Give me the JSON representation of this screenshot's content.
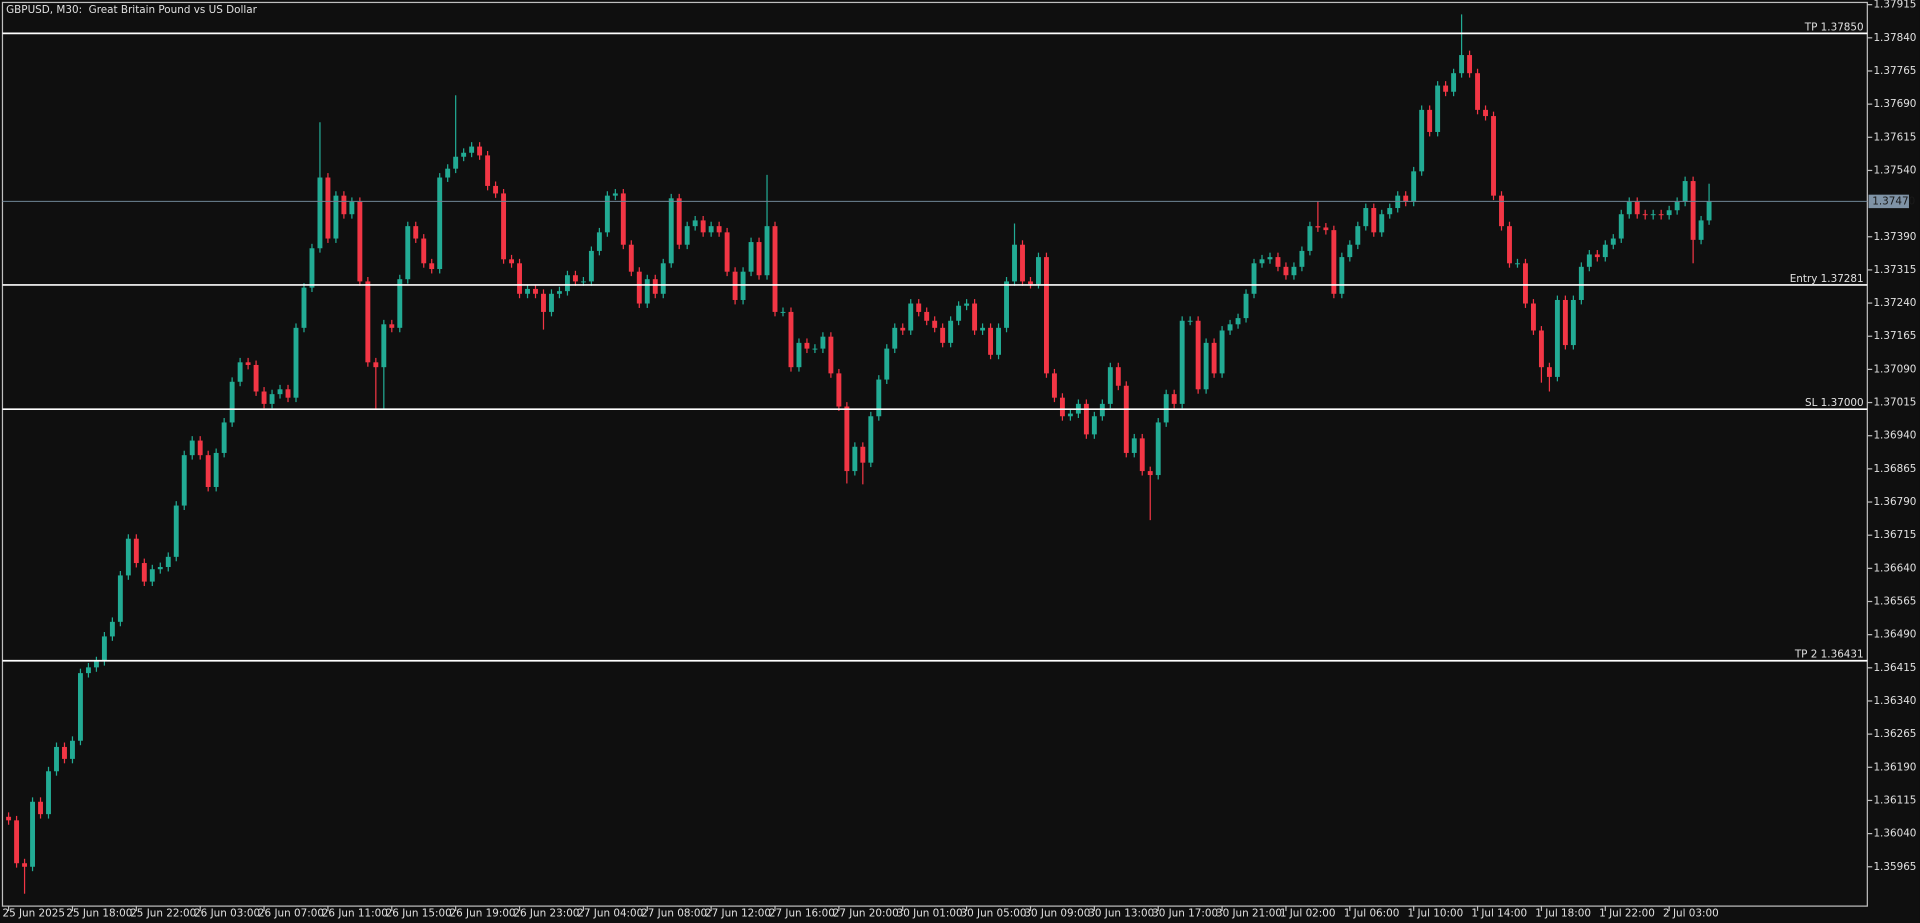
{
  "chart_data": {
    "type": "candlestick",
    "title": "GBPUSD, M30:  Great Britain Pound vs US Dollar",
    "up_color": "#22ab94",
    "down_color": "#f23645",
    "open": [
      1.36078,
      1.3607,
      1.35973,
      1.35965,
      1.36112,
      1.36084,
      1.36181,
      1.36236,
      1.36209,
      1.3625,
      1.36403,
      1.36416,
      1.3643,
      1.36486,
      1.36519,
      1.36624,
      1.36707,
      1.36652,
      1.3661,
      1.36638,
      1.36643,
      1.36666,
      1.36782,
      1.36896,
      1.36929,
      1.36896,
      1.36824,
      1.36901,
      1.3697,
      1.37062,
      1.37106,
      1.371,
      1.3704,
      1.37012,
      1.37034,
      1.37045,
      1.37026,
      1.37184,
      1.37275,
      1.37364,
      1.37524,
      1.37386,
      1.37483,
      1.37441,
      1.37469,
      1.37289,
      1.37106,
      1.37095,
      1.37192,
      1.37184,
      1.37294,
      1.37414,
      1.37386,
      1.3733,
      1.37317,
      1.37524,
      1.37544,
      1.37571,
      1.3758,
      1.37594,
      1.37574,
      1.37505,
      1.37488,
      1.37339,
      1.3733,
      1.37261,
      1.37272,
      1.37261,
      1.3722,
      1.37261,
      1.37267,
      1.37303,
      1.37289,
      1.37289,
      1.37358,
      1.374,
      1.37483,
      1.37488,
      1.37372,
      1.37311,
      1.37239,
      1.37294,
      1.37261,
      1.3733,
      1.37477,
      1.37372,
      1.37414,
      1.37427,
      1.374,
      1.37414,
      1.374,
      1.37311,
      1.37247,
      1.37311,
      1.37378,
      1.37303,
      1.37414,
      1.3722,
      1.3722,
      1.37095,
      1.3715,
      1.37137,
      1.37137,
      1.37164,
      1.37081,
      1.37006,
      1.3686,
      1.36915,
      1.36879,
      1.36984,
      1.37067,
      1.37137,
      1.37184,
      1.37178,
      1.37239,
      1.3722,
      1.372,
      1.37184,
      1.3715,
      1.372,
      1.37234,
      1.37239,
      1.37178,
      1.37184,
      1.37123,
      1.37184,
      1.37289,
      1.37372,
      1.37289,
      1.37283,
      1.37344,
      1.37081,
      1.37026,
      1.36984,
      1.3699,
      1.37012,
      1.36943,
      1.36984,
      1.37012,
      1.37095,
      1.37053,
      1.36901,
      1.36934,
      1.3686,
      1.36851,
      1.3697,
      1.37034,
      1.37012,
      1.372,
      1.372,
      1.37045,
      1.3715,
      1.37081,
      1.37178,
      1.37192,
      1.37206,
      1.37261,
      1.3733,
      1.37339,
      1.37344,
      1.37322,
      1.37303,
      1.37322,
      1.37358,
      1.37414,
      1.37411,
      1.37405,
      1.37261,
      1.37344,
      1.37372,
      1.37414,
      1.37455,
      1.374,
      1.37441,
      1.37455,
      1.37483,
      1.37469,
      1.37538,
      1.37677,
      1.37627,
      1.37732,
      1.37718,
      1.3776,
      1.37801,
      1.3776,
      1.37677,
      1.37663,
      1.37483,
      1.37414,
      1.3733,
      1.3733,
      1.37239,
      1.37178,
      1.37095,
      1.37073,
      1.37247,
      1.37145,
      1.37247,
      1.37322,
      1.3735,
      1.37344,
      1.37372,
      1.37386,
      1.37441,
      1.37469,
      1.37441,
      1.37439,
      1.37441,
      1.37439,
      1.3745,
      1.37469,
      1.37516,
      1.37383,
      1.37427
    ],
    "high": [
      1.36088,
      1.3608,
      1.35983,
      1.36122,
      1.36122,
      1.36191,
      1.36246,
      1.36246,
      1.3626,
      1.36413,
      1.36426,
      1.3644,
      1.36496,
      1.36529,
      1.36634,
      1.36717,
      1.36717,
      1.36662,
      1.36648,
      1.36653,
      1.36676,
      1.36792,
      1.36906,
      1.36939,
      1.36939,
      1.36906,
      1.36911,
      1.3698,
      1.37072,
      1.37116,
      1.37116,
      1.3711,
      1.3705,
      1.37044,
      1.37055,
      1.37055,
      1.37194,
      1.37285,
      1.37374,
      1.37649,
      1.37534,
      1.37493,
      1.37493,
      1.37479,
      1.37479,
      1.37299,
      1.37116,
      1.37202,
      1.37202,
      1.37304,
      1.37424,
      1.37424,
      1.37396,
      1.3734,
      1.37534,
      1.37554,
      1.3771,
      1.3759,
      1.37604,
      1.37604,
      1.37584,
      1.37515,
      1.37498,
      1.37349,
      1.3734,
      1.37282,
      1.37282,
      1.37271,
      1.37271,
      1.37277,
      1.37313,
      1.37313,
      1.37299,
      1.37368,
      1.3741,
      1.37493,
      1.37498,
      1.37498,
      1.37382,
      1.37321,
      1.37304,
      1.37304,
      1.3734,
      1.37487,
      1.37487,
      1.37424,
      1.37437,
      1.37437,
      1.37424,
      1.37424,
      1.3741,
      1.37321,
      1.37321,
      1.37388,
      1.37388,
      1.3753,
      1.37424,
      1.3723,
      1.3723,
      1.3716,
      1.3716,
      1.37147,
      1.37174,
      1.37174,
      1.37091,
      1.37016,
      1.36925,
      1.36925,
      1.36994,
      1.37077,
      1.37147,
      1.37194,
      1.37194,
      1.37249,
      1.37249,
      1.3723,
      1.3721,
      1.37194,
      1.3721,
      1.37244,
      1.37249,
      1.37249,
      1.37194,
      1.37194,
      1.37194,
      1.37299,
      1.3742,
      1.37382,
      1.37299,
      1.37354,
      1.37354,
      1.37091,
      1.37036,
      1.37,
      1.37022,
      1.37022,
      1.36994,
      1.37022,
      1.37105,
      1.37105,
      1.37063,
      1.36944,
      1.36944,
      1.3687,
      1.3698,
      1.37044,
      1.37044,
      1.3721,
      1.3721,
      1.3721,
      1.3716,
      1.3716,
      1.37188,
      1.37202,
      1.37216,
      1.37271,
      1.3734,
      1.37349,
      1.37354,
      1.37354,
      1.37332,
      1.37332,
      1.37368,
      1.37424,
      1.3747,
      1.37421,
      1.37415,
      1.37354,
      1.37382,
      1.37424,
      1.37465,
      1.37465,
      1.37451,
      1.37465,
      1.37493,
      1.37493,
      1.37548,
      1.37687,
      1.37687,
      1.37742,
      1.37742,
      1.3777,
      1.37893,
      1.37811,
      1.3777,
      1.37687,
      1.37673,
      1.37493,
      1.37424,
      1.3734,
      1.3734,
      1.37249,
      1.37188,
      1.37105,
      1.37257,
      1.37257,
      1.37257,
      1.37332,
      1.3736,
      1.3736,
      1.37382,
      1.37396,
      1.37451,
      1.37479,
      1.37479,
      1.37451,
      1.37451,
      1.37451,
      1.3746,
      1.37479,
      1.37526,
      1.37526,
      1.37437,
      1.3751
    ],
    "low": [
      1.3606,
      1.35963,
      1.35904,
      1.35955,
      1.36074,
      1.36074,
      1.36171,
      1.36199,
      1.36199,
      1.3624,
      1.36393,
      1.36406,
      1.3642,
      1.36476,
      1.36509,
      1.36614,
      1.36642,
      1.366,
      1.366,
      1.36628,
      1.36633,
      1.36656,
      1.36772,
      1.36886,
      1.36886,
      1.36814,
      1.36814,
      1.36891,
      1.3696,
      1.37052,
      1.3709,
      1.3703,
      1.37002,
      1.37002,
      1.37024,
      1.37016,
      1.37016,
      1.37174,
      1.37265,
      1.37354,
      1.37376,
      1.37376,
      1.37431,
      1.37431,
      1.37279,
      1.37096,
      1.37,
      1.37,
      1.37174,
      1.37174,
      1.37284,
      1.37376,
      1.3732,
      1.37307,
      1.37307,
      1.37514,
      1.37534,
      1.37561,
      1.3757,
      1.37564,
      1.37495,
      1.37478,
      1.37329,
      1.3732,
      1.37251,
      1.37251,
      1.37251,
      1.3718,
      1.3721,
      1.37251,
      1.37257,
      1.37279,
      1.37279,
      1.37279,
      1.37348,
      1.3739,
      1.37473,
      1.37362,
      1.37301,
      1.37229,
      1.37229,
      1.37251,
      1.37251,
      1.3732,
      1.37362,
      1.37362,
      1.37404,
      1.3739,
      1.3739,
      1.3739,
      1.37301,
      1.37237,
      1.37237,
      1.37301,
      1.37293,
      1.37293,
      1.3721,
      1.3721,
      1.37085,
      1.37085,
      1.37127,
      1.37127,
      1.37127,
      1.37071,
      1.36996,
      1.36832,
      1.3685,
      1.3683,
      1.36869,
      1.36974,
      1.37057,
      1.37127,
      1.37168,
      1.37168,
      1.3721,
      1.3719,
      1.37174,
      1.3714,
      1.3714,
      1.3719,
      1.37224,
      1.37168,
      1.37168,
      1.37113,
      1.37113,
      1.37174,
      1.37279,
      1.37279,
      1.37273,
      1.37273,
      1.37071,
      1.37016,
      1.36974,
      1.36974,
      1.3698,
      1.36933,
      1.36933,
      1.36974,
      1.37002,
      1.37043,
      1.36891,
      1.36891,
      1.3685,
      1.36749,
      1.36841,
      1.3696,
      1.37002,
      1.37002,
      1.3719,
      1.37035,
      1.37035,
      1.37071,
      1.37071,
      1.37168,
      1.37182,
      1.37196,
      1.37251,
      1.3732,
      1.37329,
      1.37312,
      1.37293,
      1.37293,
      1.37312,
      1.37348,
      1.37401,
      1.37395,
      1.37251,
      1.37251,
      1.37334,
      1.37362,
      1.37404,
      1.3739,
      1.3739,
      1.37431,
      1.37445,
      1.37459,
      1.37459,
      1.37528,
      1.37617,
      1.37617,
      1.37708,
      1.37708,
      1.3775,
      1.3775,
      1.37667,
      1.37653,
      1.37473,
      1.37404,
      1.3732,
      1.3732,
      1.37229,
      1.37168,
      1.3706,
      1.3704,
      1.37063,
      1.37135,
      1.37135,
      1.37237,
      1.37312,
      1.37334,
      1.37334,
      1.37362,
      1.37376,
      1.37431,
      1.37431,
      1.37429,
      1.37429,
      1.37429,
      1.37429,
      1.3744,
      1.37459,
      1.3733,
      1.37373,
      1.37417
    ],
    "close": [
      1.3607,
      1.35973,
      1.35965,
      1.36112,
      1.36084,
      1.36181,
      1.36236,
      1.36209,
      1.3625,
      1.36403,
      1.36416,
      1.3643,
      1.36486,
      1.36519,
      1.36624,
      1.36707,
      1.36652,
      1.3661,
      1.36638,
      1.36643,
      1.36666,
      1.36782,
      1.36896,
      1.36929,
      1.36896,
      1.36824,
      1.36901,
      1.3697,
      1.37062,
      1.37106,
      1.371,
      1.3704,
      1.37012,
      1.37034,
      1.37045,
      1.37026,
      1.37184,
      1.37275,
      1.37364,
      1.37524,
      1.37386,
      1.37483,
      1.37441,
      1.37469,
      1.37289,
      1.37106,
      1.37095,
      1.37192,
      1.37184,
      1.37294,
      1.37414,
      1.37386,
      1.3733,
      1.37317,
      1.37524,
      1.37544,
      1.37571,
      1.3758,
      1.37594,
      1.37574,
      1.37505,
      1.37488,
      1.37339,
      1.3733,
      1.37261,
      1.37272,
      1.37261,
      1.3722,
      1.37261,
      1.37267,
      1.37303,
      1.37289,
      1.37289,
      1.37358,
      1.374,
      1.37483,
      1.37488,
      1.37372,
      1.37311,
      1.37239,
      1.37294,
      1.37261,
      1.3733,
      1.37477,
      1.37372,
      1.37414,
      1.37427,
      1.374,
      1.37414,
      1.374,
      1.37311,
      1.37247,
      1.37311,
      1.37378,
      1.37303,
      1.37414,
      1.3722,
      1.3722,
      1.37095,
      1.3715,
      1.37137,
      1.37137,
      1.37164,
      1.37081,
      1.37006,
      1.3686,
      1.36915,
      1.36879,
      1.36984,
      1.37067,
      1.37137,
      1.37184,
      1.37178,
      1.37239,
      1.3722,
      1.372,
      1.37184,
      1.3715,
      1.372,
      1.37234,
      1.37239,
      1.37178,
      1.37184,
      1.37123,
      1.37184,
      1.37289,
      1.37372,
      1.37289,
      1.37283,
      1.37344,
      1.37081,
      1.37026,
      1.36984,
      1.3699,
      1.37012,
      1.36943,
      1.36984,
      1.37012,
      1.37095,
      1.37053,
      1.36901,
      1.36934,
      1.3686,
      1.36851,
      1.3697,
      1.37034,
      1.37012,
      1.372,
      1.372,
      1.37045,
      1.3715,
      1.37081,
      1.37178,
      1.37192,
      1.37206,
      1.37261,
      1.3733,
      1.37339,
      1.37344,
      1.37322,
      1.37303,
      1.37322,
      1.37358,
      1.37414,
      1.37411,
      1.37405,
      1.37261,
      1.37344,
      1.37372,
      1.37414,
      1.37455,
      1.374,
      1.37441,
      1.37455,
      1.37483,
      1.37469,
      1.37538,
      1.37677,
      1.37627,
      1.37732,
      1.37718,
      1.3776,
      1.37801,
      1.3776,
      1.37677,
      1.37663,
      1.37483,
      1.37414,
      1.3733,
      1.3733,
      1.37239,
      1.37178,
      1.37095,
      1.37073,
      1.37247,
      1.37145,
      1.37247,
      1.37322,
      1.3735,
      1.37344,
      1.37372,
      1.37386,
      1.37441,
      1.37469,
      1.37441,
      1.37439,
      1.37441,
      1.37439,
      1.3745,
      1.37469,
      1.37516,
      1.37383,
      1.37427,
      1.3747
    ],
    "ylim": [
      1.35876,
      1.3792
    ],
    "yticks": [
      1.37915,
      {
        "value": 1.3784,
        "label": "1.37840"
      },
      1.37765,
      {
        "value": 1.3769,
        "label": "1.37690"
      },
      1.37615,
      {
        "value": 1.3754,
        "label": "1.37540"
      },
      {
        "value": 1.3739,
        "label": "1.37390"
      },
      1.37315,
      {
        "value": 1.3724,
        "label": "1.37240"
      },
      1.37165,
      {
        "value": 1.3709,
        "label": "1.37090"
      },
      1.37015,
      {
        "value": 1.3694,
        "label": "1.36940"
      },
      1.36865,
      {
        "value": 1.3679,
        "label": "1.36790"
      },
      1.36715,
      {
        "value": 1.3664,
        "label": "1.36640"
      },
      1.36565,
      {
        "value": 1.3649,
        "label": "1.36490"
      },
      1.36415,
      {
        "value": 1.3634,
        "label": "1.36340"
      },
      1.36265,
      {
        "value": 1.3619,
        "label": "1.36190"
      },
      1.36115,
      {
        "value": 1.3604,
        "label": "1.36040"
      },
      1.35965
    ],
    "xticks": [
      {
        "value": 0,
        "label": "25 Jun 2025"
      },
      {
        "value": 8,
        "label": "25 Jun 18:00"
      },
      {
        "value": 16,
        "label": "25 Jun 22:00"
      },
      {
        "value": 24,
        "label": "26 Jun 03:00"
      },
      {
        "value": 32,
        "label": "26 Jun 07:00"
      },
      {
        "value": 40,
        "label": "26 Jun 11:00"
      },
      {
        "value": 48,
        "label": "26 Jun 15:00"
      },
      {
        "value": 56,
        "label": "26 Jun 19:00"
      },
      {
        "value": 64,
        "label": "26 Jun 23:00"
      },
      {
        "value": 72,
        "label": "27 Jun 04:00"
      },
      {
        "value": 80,
        "label": "27 Jun 08:00"
      },
      {
        "value": 88,
        "label": "27 Jun 12:00"
      },
      {
        "value": 96,
        "label": "27 Jun 16:00"
      },
      {
        "value": 104,
        "label": "27 Jun 20:00"
      },
      {
        "value": 112,
        "label": "30 Jun 01:00"
      },
      {
        "value": 120,
        "label": "30 Jun 05:00"
      },
      {
        "value": 128,
        "label": "30 Jun 09:00"
      },
      {
        "value": 136,
        "label": "30 Jun 13:00"
      },
      {
        "value": 144,
        "label": "30 Jun 17:00"
      },
      {
        "value": 152,
        "label": "30 Jun 21:00"
      },
      {
        "value": 160,
        "label": "1 Jul 02:00"
      },
      {
        "value": 168,
        "label": "1 Jul 06:00"
      },
      {
        "value": 176,
        "label": "1 Jul 10:00"
      },
      {
        "value": 184,
        "label": "1 Jul 14:00"
      },
      {
        "value": 192,
        "label": "1 Jul 18:00"
      },
      {
        "value": 200,
        "label": "1 Jul 22:00"
      },
      {
        "value": 208,
        "label": "2 Jul 03:00"
      }
    ],
    "levels": [
      {
        "value": 1.3785,
        "label": "TP 1.37850"
      },
      {
        "value": 1.37281,
        "label": "Entry 1.37281"
      },
      {
        "value": 1.37,
        "label": "SL 1.37000"
      },
      {
        "value": 1.36431,
        "label": "TP 2 1.36431"
      }
    ],
    "current_price": {
      "value": 1.3747,
      "label": "1.37470"
    }
  }
}
